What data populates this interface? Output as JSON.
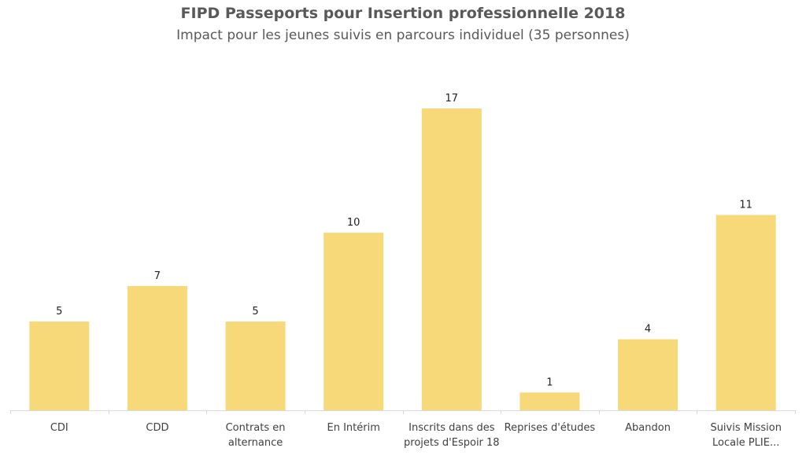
{
  "chart_data": {
    "type": "bar",
    "title": "FIPD Passeports pour Insertion professionnelle 2018",
    "subtitle": "Impact pour les jeunes suivis en parcours individuel (35 personnes)",
    "categories": [
      [
        "CDI"
      ],
      [
        "CDD"
      ],
      [
        "Contrats en",
        "alternance"
      ],
      [
        "En Intérim"
      ],
      [
        "Inscrits dans des",
        "projets d'Espoir 18"
      ],
      [
        "Reprises d'études"
      ],
      [
        "Abandon"
      ],
      [
        "Suivis Mission",
        "Locale PLIE..."
      ]
    ],
    "values": [
      5,
      7,
      5,
      10,
      17,
      1,
      4,
      11
    ],
    "data_labels": true,
    "grid": false,
    "y_axis_visible": false,
    "colors": {
      "bar": "#F7D97A",
      "axis": "#D9D9D9"
    }
  }
}
